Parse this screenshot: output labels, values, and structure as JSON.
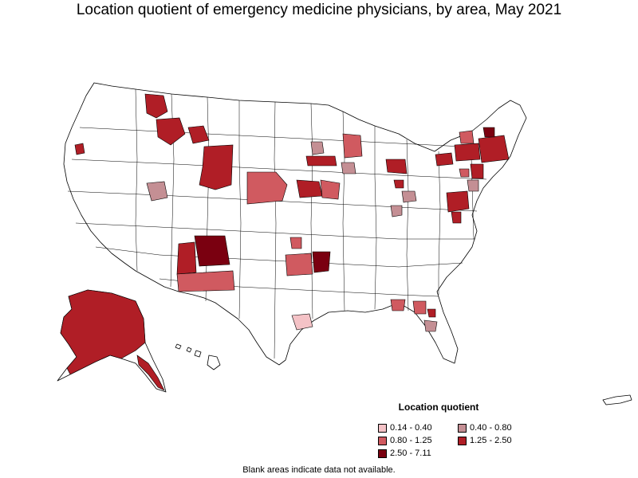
{
  "title": "Location quotient of emergency medicine physicians, by area, May 2021",
  "legend": {
    "title": "Location quotient",
    "items": [
      {
        "label": "0.14 - 0.40",
        "color": "#f4c2c6"
      },
      {
        "label": "0.40 - 0.80",
        "color": "#c48f94"
      },
      {
        "label": "0.80 - 1.25",
        "color": "#d05a60"
      },
      {
        "label": "1.25 - 2.50",
        "color": "#b01e26"
      },
      {
        "label": "2.50 - 7.11",
        "color": "#7a0010"
      }
    ]
  },
  "footnote": "Blank areas indicate data not available."
}
